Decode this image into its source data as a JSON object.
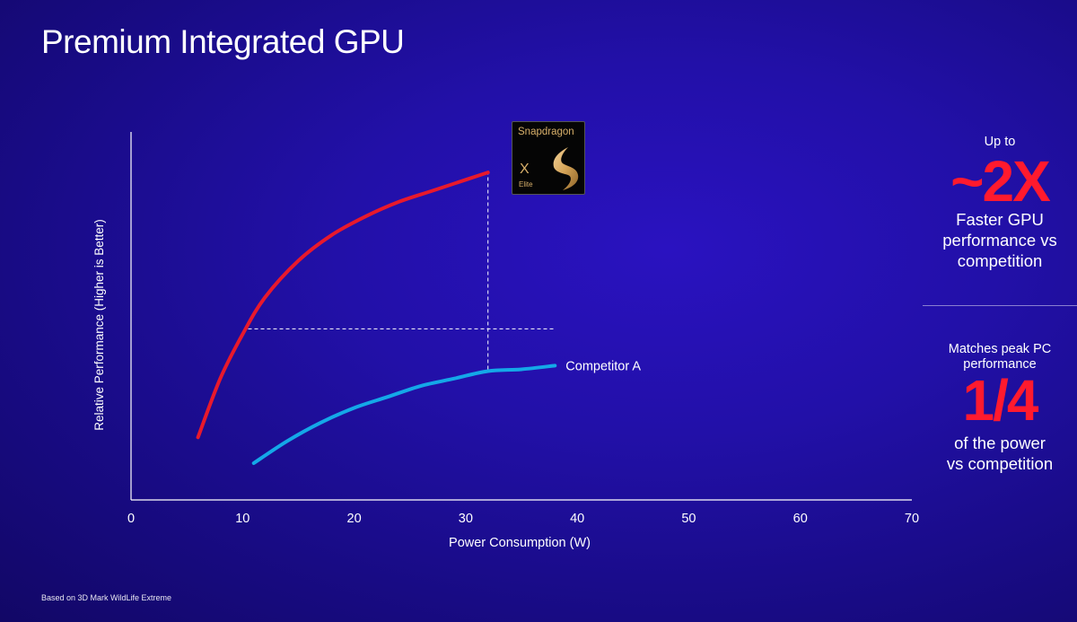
{
  "slide": {
    "title": "Premium Integrated GPU",
    "footnote": "Based on 3D Mark WildLife Extreme"
  },
  "badge": {
    "brand": "Snapdragon",
    "model_letter": "X",
    "model_tier": "Elite"
  },
  "highlights": [
    {
      "prefix": "Up to",
      "value": "~2X",
      "description_lines": [
        "Faster GPU",
        "performance vs",
        "competition"
      ]
    },
    {
      "prefix_lines": [
        "Matches peak PC",
        "performance"
      ],
      "value": "1/4",
      "description_lines": [
        "of the power",
        "vs competition"
      ]
    }
  ],
  "colors": {
    "background": "#1c0c94",
    "snapdragon_curve": "#e8192c",
    "competitor_curve": "#14a8e8",
    "highlight": "#ff1a2e"
  },
  "chart_data": {
    "type": "line",
    "xlabel": "Power Consumption (W)",
    "ylabel": "Relative Performance  (Higher is Better)",
    "xlim": [
      0,
      70
    ],
    "ylim": [
      0,
      1
    ],
    "x_ticks": [
      0,
      10,
      20,
      30,
      40,
      50,
      60,
      70
    ],
    "y_ticks_shown": false,
    "grid": false,
    "series": [
      {
        "name": "Snapdragon X Elite",
        "label_style": "badge",
        "color": "#e8192c",
        "points": [
          [
            6,
            0.17
          ],
          [
            8,
            0.33
          ],
          [
            10,
            0.45
          ],
          [
            12,
            0.55
          ],
          [
            15,
            0.65
          ],
          [
            18,
            0.72
          ],
          [
            21,
            0.77
          ],
          [
            24,
            0.81
          ],
          [
            27,
            0.84
          ],
          [
            30,
            0.87
          ],
          [
            32,
            0.89
          ]
        ]
      },
      {
        "name": "Competitor A",
        "label_style": "text",
        "color": "#14a8e8",
        "points": [
          [
            11,
            0.1
          ],
          [
            14,
            0.16
          ],
          [
            17,
            0.21
          ],
          [
            20,
            0.25
          ],
          [
            23,
            0.28
          ],
          [
            26,
            0.31
          ],
          [
            29,
            0.33
          ],
          [
            32,
            0.35
          ],
          [
            35,
            0.355
          ],
          [
            38,
            0.365
          ]
        ]
      }
    ],
    "annotations": [
      {
        "type": "dashed-horizontal",
        "y": 0.465,
        "x_from": 10.5,
        "x_to": 38
      },
      {
        "type": "dashed-vertical",
        "x": 32,
        "y_from": 0.355,
        "y_to": 0.89
      }
    ]
  }
}
